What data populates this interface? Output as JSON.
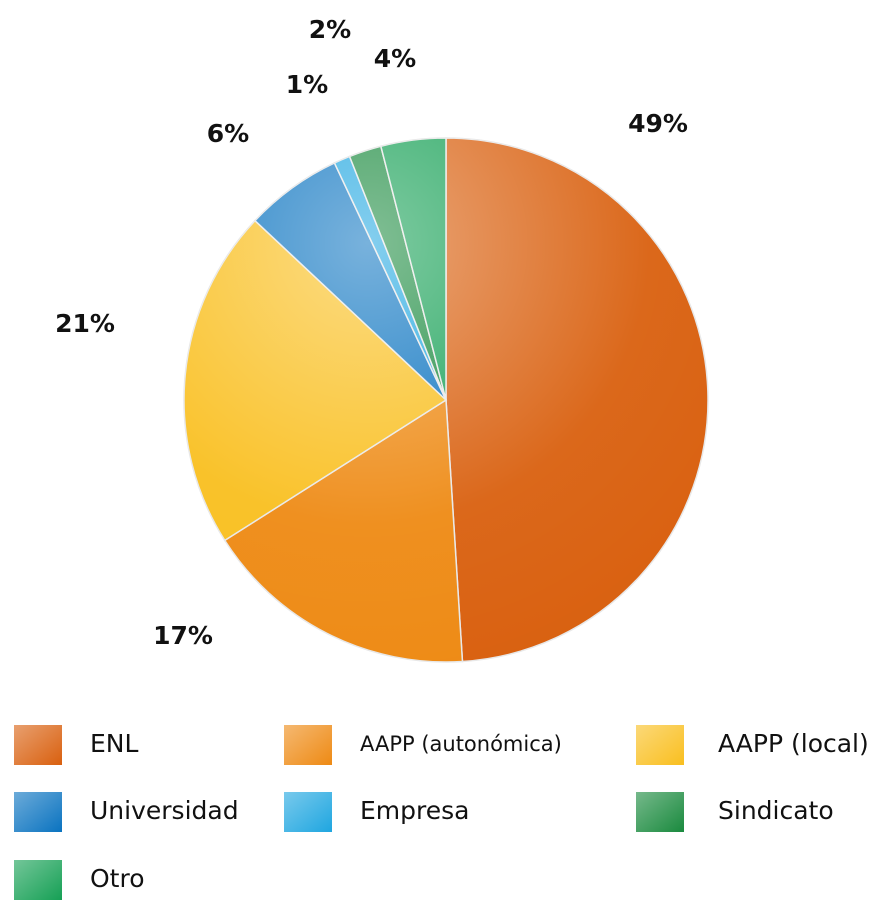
{
  "chart_data": {
    "type": "pie",
    "categories": [
      "ENL",
      "AAPP (autonómica)",
      "AAPP (local)",
      "Universidad",
      "Empresa",
      "Sindicato",
      "Otro"
    ],
    "values": [
      49,
      17,
      21,
      6,
      1,
      2,
      4
    ],
    "value_labels": [
      "49%",
      "17%",
      "21%",
      "6%",
      "1%",
      "2%",
      "4%"
    ],
    "colors": [
      "#d9600f",
      "#ee8a14",
      "#f9bf1f",
      "#0a73c0",
      "#1fa6e0",
      "#1a8a3e",
      "#16a055"
    ],
    "legend": "bottom"
  }
}
